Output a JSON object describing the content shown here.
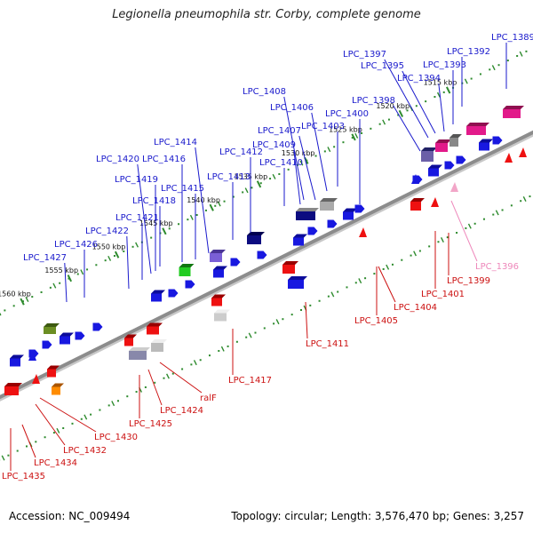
{
  "title": "Legionella pneumophila str. Corby, complete genome",
  "footer": {
    "accession": "Accession: NC_009494",
    "summary": "Topology: circular; Length: 3,576,470 bp; Genes: 3,257"
  },
  "colors": {
    "backbone": "#8c8c8c",
    "tick": "#2e8b2e",
    "forward_label": "#1a1acc",
    "reverse_label": "#cc1111",
    "pink_label": "#ee88bb"
  },
  "kbp_marks": [
    {
      "kbp": 1515,
      "label": "1515 kbp"
    },
    {
      "kbp": 1520,
      "label": "1520 kbp"
    },
    {
      "kbp": 1525,
      "label": "1525 kbp"
    },
    {
      "kbp": 1530,
      "label": "1530 kbp"
    },
    {
      "kbp": 1535,
      "label": "1535 kbp"
    },
    {
      "kbp": 1540,
      "label": "1540 kbp"
    },
    {
      "kbp": 1545,
      "label": "1545 kbp"
    },
    {
      "kbp": 1550,
      "label": "1550 kbp"
    },
    {
      "kbp": 1555,
      "label": "1555 kbp"
    },
    {
      "kbp": 1560,
      "label": "1560 kbp"
    }
  ],
  "forward_genes": [
    {
      "id": "LPC_1389"
    },
    {
      "id": "LPC_1392"
    },
    {
      "id": "LPC_1393"
    },
    {
      "id": "LPC_1394"
    },
    {
      "id": "LPC_1395"
    },
    {
      "id": "LPC_1397"
    },
    {
      "id": "LPC_1398"
    },
    {
      "id": "LPC_1400"
    },
    {
      "id": "LPC_1403"
    },
    {
      "id": "LPC_1406"
    },
    {
      "id": "LPC_1407"
    },
    {
      "id": "LPC_1408"
    },
    {
      "id": "LPC_1409"
    },
    {
      "id": "LPC_1410"
    },
    {
      "id": "LPC_1412"
    },
    {
      "id": "LPC_1413"
    },
    {
      "id": "LPC_1414"
    },
    {
      "id": "LPC_1415"
    },
    {
      "id": "LPC_1416"
    },
    {
      "id": "LPC_1418"
    },
    {
      "id": "LPC_1419"
    },
    {
      "id": "LPC_1420"
    },
    {
      "id": "LPC_1421"
    },
    {
      "id": "LPC_1422"
    },
    {
      "id": "LPC_1426"
    },
    {
      "id": "LPC_1427"
    }
  ],
  "reverse_genes": [
    {
      "id": "LPC_1396"
    },
    {
      "id": "LPC_1399"
    },
    {
      "id": "LPC_1401"
    },
    {
      "id": "LPC_1404"
    },
    {
      "id": "LPC_1405"
    },
    {
      "id": "LPC_1411"
    },
    {
      "id": "LPC_1417"
    },
    {
      "id": "ralF"
    },
    {
      "id": "LPC_1424"
    },
    {
      "id": "LPC_1425"
    },
    {
      "id": "LPC_1430"
    },
    {
      "id": "LPC_1432"
    },
    {
      "id": "LPC_1434"
    },
    {
      "id": "LPC_1435"
    }
  ]
}
